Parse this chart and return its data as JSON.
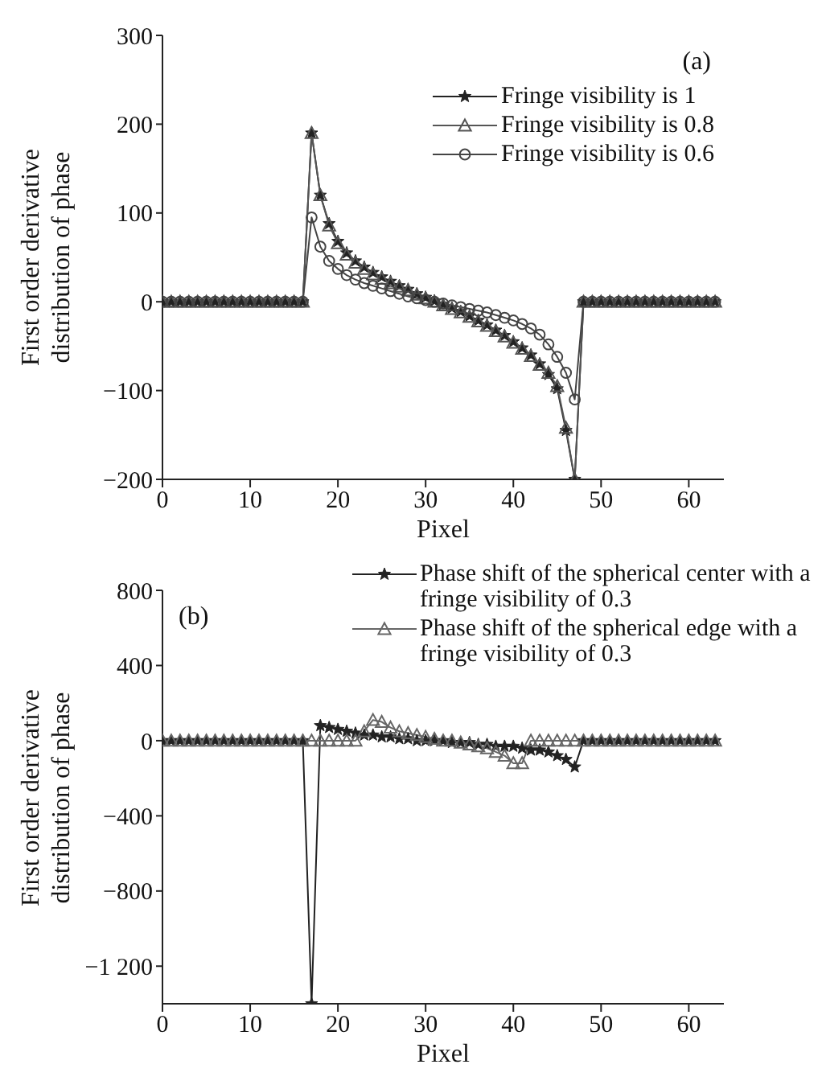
{
  "chart_data": [
    {
      "type": "line",
      "xlabel": "Pixel",
      "ylabel": "First order derivative distribution of phase",
      "annotations": [
        "(a)"
      ],
      "x": [
        0,
        1,
        2,
        3,
        4,
        5,
        6,
        7,
        8,
        9,
        10,
        11,
        12,
        13,
        14,
        15,
        16,
        17,
        18,
        19,
        20,
        21,
        22,
        23,
        24,
        25,
        26,
        27,
        28,
        29,
        30,
        31,
        32,
        33,
        34,
        35,
        36,
        37,
        38,
        39,
        40,
        41,
        42,
        43,
        44,
        45,
        46,
        47,
        48,
        49,
        50,
        51,
        52,
        53,
        54,
        55,
        56,
        57,
        58,
        59,
        60,
        61,
        62,
        63
      ],
      "xlim": [
        0,
        64
      ],
      "xticks": [
        0,
        10,
        20,
        30,
        40,
        50,
        60
      ],
      "ylim": [
        -200,
        300
      ],
      "yticks": [
        {
          "value": -200,
          "label": "−200"
        },
        {
          "value": -100,
          "label": "−100"
        },
        0,
        100,
        200,
        300
      ],
      "legend": "top right",
      "line_style": "solid",
      "series": [
        {
          "name": "Fringe visibility is 1",
          "color": "#222222",
          "marker": "star",
          "values": [
            0,
            0,
            0,
            0,
            0,
            0,
            0,
            0,
            0,
            0,
            0,
            0,
            0,
            0,
            0,
            0,
            0,
            190,
            120,
            88,
            68,
            55,
            46,
            39,
            33,
            28,
            23,
            18,
            14,
            9,
            5,
            1,
            -3,
            -7,
            -11,
            -16,
            -21,
            -26,
            -32,
            -38,
            -45,
            -52,
            -60,
            -70,
            -82,
            -98,
            -145,
            -200,
            0,
            0,
            0,
            0,
            0,
            0,
            0,
            0,
            0,
            0,
            0,
            0,
            0,
            0,
            0,
            0
          ]
        },
        {
          "name": "Fringe visibility is 0.8",
          "color": "#555555",
          "marker": "triangle",
          "values": [
            0,
            0,
            0,
            0,
            0,
            0,
            0,
            0,
            0,
            0,
            0,
            0,
            0,
            0,
            0,
            0,
            0,
            190,
            120,
            86,
            66,
            53,
            44,
            37,
            31,
            26,
            21,
            17,
            13,
            8,
            4,
            0,
            -4,
            -8,
            -12,
            -17,
            -22,
            -27,
            -33,
            -39,
            -46,
            -53,
            -61,
            -71,
            -80,
            -95,
            -142,
            -200,
            0,
            0,
            0,
            0,
            0,
            0,
            0,
            0,
            0,
            0,
            0,
            0,
            0,
            0,
            0,
            0
          ]
        },
        {
          "name": "Fringe visibility is 0.6",
          "color": "#444444",
          "marker": "circle",
          "values": [
            0,
            0,
            0,
            0,
            0,
            0,
            0,
            0,
            0,
            0,
            0,
            0,
            0,
            0,
            0,
            0,
            0,
            95,
            62,
            46,
            37,
            30,
            25,
            21,
            18,
            15,
            12,
            9,
            6,
            4,
            2,
            0,
            -2,
            -4,
            -6,
            -8,
            -10,
            -12,
            -15,
            -18,
            -21,
            -25,
            -30,
            -37,
            -48,
            -62,
            -80,
            -110,
            0,
            0,
            0,
            0,
            0,
            0,
            0,
            0,
            0,
            0,
            0,
            0,
            0,
            0,
            0,
            0
          ]
        }
      ]
    },
    {
      "type": "line",
      "xlabel": "Pixel",
      "ylabel": "First order derivative distribution of phase",
      "annotations": [
        "(b)"
      ],
      "x": [
        0,
        1,
        2,
        3,
        4,
        5,
        6,
        7,
        8,
        9,
        10,
        11,
        12,
        13,
        14,
        15,
        16,
        17,
        18,
        19,
        20,
        21,
        22,
        23,
        24,
        25,
        26,
        27,
        28,
        29,
        30,
        31,
        32,
        33,
        34,
        35,
        36,
        37,
        38,
        39,
        40,
        41,
        42,
        43,
        44,
        45,
        46,
        47,
        48,
        49,
        50,
        51,
        52,
        53,
        54,
        55,
        56,
        57,
        58,
        59,
        60,
        61,
        62,
        63
      ],
      "xlim": [
        0,
        64
      ],
      "xticks": [
        0,
        10,
        20,
        30,
        40,
        50,
        60
      ],
      "ylim": [
        -1400,
        800
      ],
      "yticks": [
        {
          "value": -1200,
          "label": "−1 200"
        },
        {
          "value": -800,
          "label": "−800"
        },
        {
          "value": -400,
          "label": "−400"
        },
        0,
        400,
        800
      ],
      "legend": "top right",
      "line_style": "solid",
      "series": [
        {
          "name": "Phase shift of the spherical center with a fringe visibility of 0.3",
          "color": "#222222",
          "marker": "star",
          "values": [
            0,
            0,
            0,
            0,
            0,
            0,
            0,
            0,
            0,
            0,
            0,
            0,
            0,
            0,
            0,
            0,
            0,
            -1400,
            80,
            70,
            60,
            50,
            40,
            30,
            30,
            20,
            20,
            10,
            10,
            0,
            0,
            0,
            0,
            -10,
            -10,
            -10,
            -20,
            -20,
            -30,
            -30,
            -30,
            -40,
            -50,
            -50,
            -60,
            -80,
            -100,
            -140,
            0,
            0,
            0,
            0,
            0,
            0,
            0,
            0,
            0,
            0,
            0,
            0,
            0,
            0,
            0,
            0
          ]
        },
        {
          "name": "Phase shift of the spherical edge with a fringe visibility of 0.3",
          "color": "#666666",
          "marker": "triangle",
          "values": [
            0,
            0,
            0,
            0,
            0,
            0,
            0,
            0,
            0,
            0,
            0,
            0,
            0,
            0,
            0,
            0,
            0,
            0,
            0,
            0,
            0,
            0,
            0,
            50,
            110,
            100,
            70,
            50,
            40,
            30,
            20,
            10,
            0,
            0,
            -10,
            -20,
            -30,
            -40,
            -60,
            -80,
            -120,
            -120,
            0,
            0,
            0,
            0,
            0,
            0,
            0,
            0,
            0,
            0,
            0,
            0,
            0,
            0,
            0,
            0,
            0,
            0,
            0,
            0,
            0,
            0
          ]
        }
      ]
    }
  ]
}
